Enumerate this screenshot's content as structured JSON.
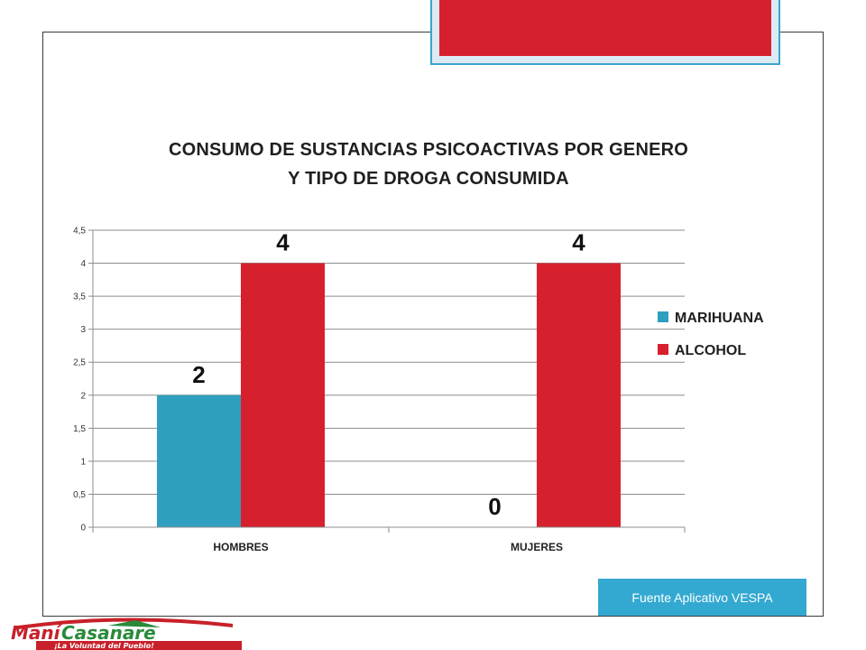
{
  "slide": {
    "source_label": "Fuente Aplicativo VESPA",
    "logo": {
      "name": "ManíCasanare",
      "tagline": "¡La Voluntad del Pueblo!"
    }
  },
  "chart_data": {
    "type": "bar",
    "title_line1": "CONSUMO DE SUSTANCIAS PSICOACTIVAS POR GENERO",
    "title_line2": "Y TIPO DE DROGA CONSUMIDA",
    "categories": [
      "HOMBRES",
      "MUJERES"
    ],
    "series": [
      {
        "name": "MARIHUANA",
        "values": [
          2,
          0
        ],
        "labels": [
          "2",
          "0"
        ],
        "color": "#2e9fbe"
      },
      {
        "name": "ALCOHOL",
        "values": [
          4,
          4
        ],
        "labels": [
          "4",
          "4"
        ],
        "color": "#d7202d"
      }
    ],
    "ylim": [
      0,
      4.5
    ],
    "yticks": [
      0,
      0.5,
      1,
      1.5,
      2,
      2.5,
      3,
      3.5,
      4,
      4.5
    ],
    "ytick_labels": [
      "0",
      "0,5",
      "1",
      "1,5",
      "2",
      "2,5",
      "3",
      "3,5",
      "4",
      "4,5"
    ],
    "grid": true,
    "legend_position": "right"
  }
}
